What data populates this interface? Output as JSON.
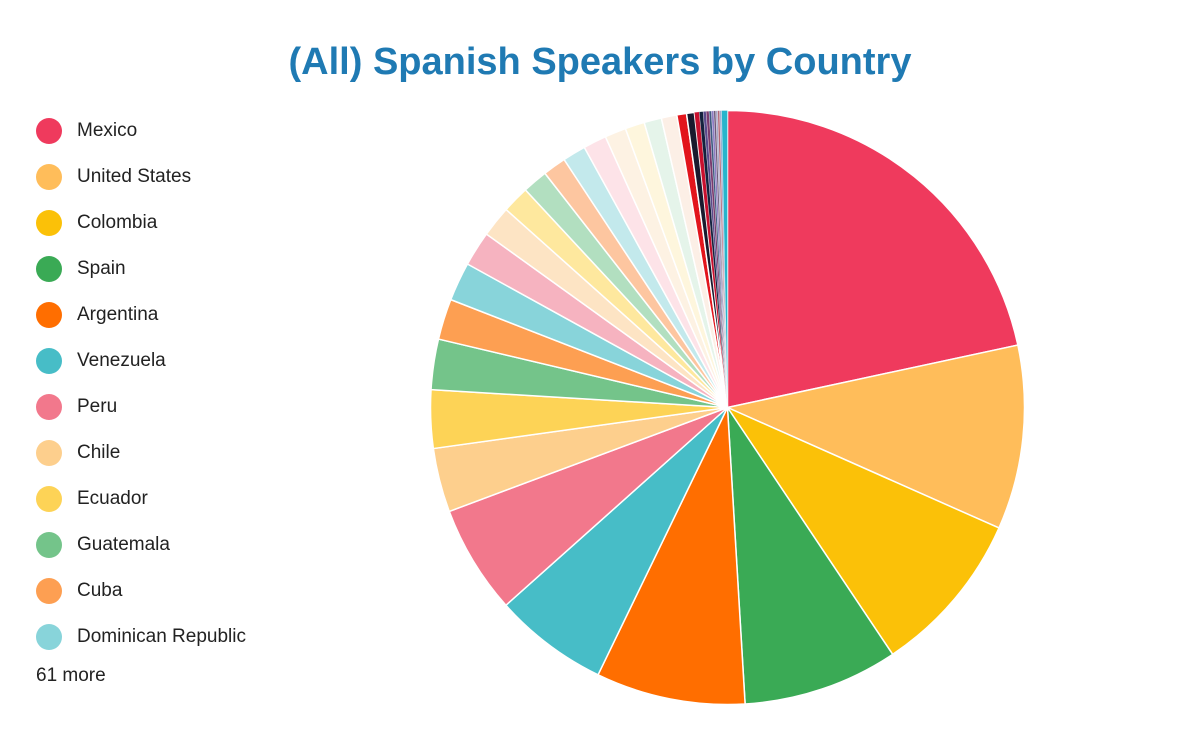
{
  "chart_data": {
    "type": "pie",
    "title": "(All) Spanish Speakers by Country",
    "legend_position": "left",
    "legend_more_label": "61 more",
    "slices": [
      {
        "label": "Mexico",
        "value": 20.5,
        "color": "#ef3a5d"
      },
      {
        "label": "United States",
        "value": 9.5,
        "color": "#ffbd5a"
      },
      {
        "label": "Colombia",
        "value": 8.5,
        "color": "#fbc108"
      },
      {
        "label": "Spain",
        "value": 8.0,
        "color": "#3aaa55"
      },
      {
        "label": "Argentina",
        "value": 7.7,
        "color": "#ff6e00"
      },
      {
        "label": "Venezuela",
        "value": 5.9,
        "color": "#47bdc7"
      },
      {
        "label": "Peru",
        "value": 5.6,
        "color": "#f2788c"
      },
      {
        "label": "Chile",
        "value": 3.3,
        "color": "#fdcf8d"
      },
      {
        "label": "Ecuador",
        "value": 3.0,
        "color": "#fdd356"
      },
      {
        "label": "Guatemala",
        "value": 2.6,
        "color": "#74c48a"
      },
      {
        "label": "Cuba",
        "value": 2.1,
        "color": "#fd9f52"
      },
      {
        "label": "Dominican Republic",
        "value": 2.0,
        "color": "#88d4da"
      },
      {
        "label": "",
        "value": 1.8,
        "color": "#f6b3c0"
      },
      {
        "label": "",
        "value": 1.6,
        "color": "#fde4c4"
      },
      {
        "label": "",
        "value": 1.4,
        "color": "#fee89e"
      },
      {
        "label": "",
        "value": 1.3,
        "color": "#b2dfc0"
      },
      {
        "label": "",
        "value": 1.2,
        "color": "#fdc6a0"
      },
      {
        "label": "",
        "value": 1.2,
        "color": "#c3e9ec"
      },
      {
        "label": "",
        "value": 1.2,
        "color": "#fde3e8"
      },
      {
        "label": "",
        "value": 1.1,
        "color": "#fdf2e3"
      },
      {
        "label": "",
        "value": 1.0,
        "color": "#fef6dd"
      },
      {
        "label": "",
        "value": 0.9,
        "color": "#e5f4ea"
      },
      {
        "label": "",
        "value": 0.8,
        "color": "#fcefe6"
      },
      {
        "label": "",
        "value": 0.5,
        "color": "#e2151c"
      },
      {
        "label": "",
        "value": 0.4,
        "color": "#1a1a2e"
      },
      {
        "label": "",
        "value": 0.25,
        "color": "#c8102e"
      },
      {
        "label": "",
        "value": 0.2,
        "color": "#14213d"
      },
      {
        "label": "",
        "value": 0.15,
        "color": "#5a4a8c"
      },
      {
        "label": "",
        "value": 0.15,
        "color": "#7a3b6e"
      },
      {
        "label": "",
        "value": 0.12,
        "color": "#3d5a80"
      },
      {
        "label": "",
        "value": 0.12,
        "color": "#8e7cc3"
      },
      {
        "label": "",
        "value": 0.1,
        "color": "#6d597a"
      },
      {
        "label": "",
        "value": 0.1,
        "color": "#a8a8c8"
      },
      {
        "label": "",
        "value": 0.1,
        "color": "#b56576"
      },
      {
        "label": "",
        "value": 0.1,
        "color": "#9bb1d4"
      },
      {
        "label": "",
        "value": 0.3,
        "color": "#27b5cc"
      }
    ]
  }
}
